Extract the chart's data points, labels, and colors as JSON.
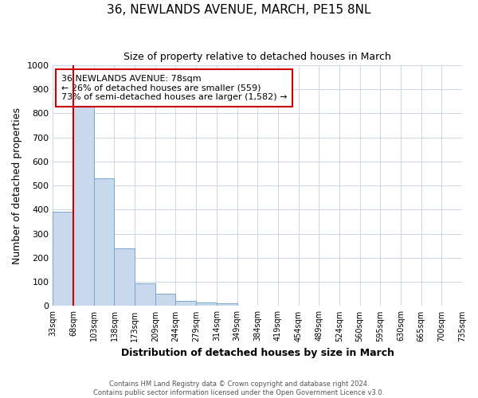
{
  "title": "36, NEWLANDS AVENUE, MARCH, PE15 8NL",
  "subtitle": "Size of property relative to detached houses in March",
  "xlabel": "Distribution of detached houses by size in March",
  "ylabel": "Number of detached properties",
  "bar_values": [
    390,
    828,
    530,
    240,
    95,
    52,
    20,
    15,
    10,
    0,
    0,
    0,
    0,
    0,
    0,
    0,
    0,
    0,
    0,
    0
  ],
  "bin_labels": [
    "33sqm",
    "68sqm",
    "103sqm",
    "138sqm",
    "173sqm",
    "209sqm",
    "244sqm",
    "279sqm",
    "314sqm",
    "349sqm",
    "384sqm",
    "419sqm",
    "454sqm",
    "489sqm",
    "524sqm",
    "560sqm",
    "595sqm",
    "630sqm",
    "665sqm",
    "700sqm",
    "735sqm"
  ],
  "bar_color": "#c8d9ee",
  "bar_edge_color": "#7ba7cc",
  "vline_x": 1,
  "vline_color": "#cc0000",
  "annotation_text": "36 NEWLANDS AVENUE: 78sqm\n← 26% of detached houses are smaller (559)\n73% of semi-detached houses are larger (1,582) →",
  "annotation_box_color": "#ffffff",
  "annotation_box_edge_color": "#cc0000",
  "ylim": [
    0,
    1000
  ],
  "yticks": [
    0,
    100,
    200,
    300,
    400,
    500,
    600,
    700,
    800,
    900,
    1000
  ],
  "footer_line1": "Contains HM Land Registry data © Crown copyright and database right 2024.",
  "footer_line2": "Contains public sector information licensed under the Open Government Licence v3.0.",
  "background_color": "#ffffff",
  "grid_color": "#ccd5e5"
}
